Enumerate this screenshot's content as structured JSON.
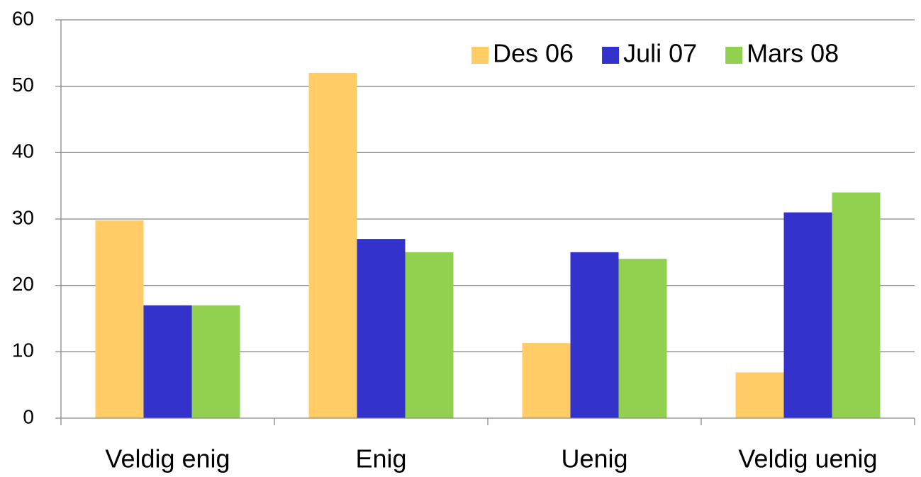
{
  "chart_data": {
    "type": "bar",
    "categories": [
      "Veldig enig",
      "Enig",
      "Uenig",
      "Veldig uenig"
    ],
    "series": [
      {
        "name": "Des 06",
        "color": "#FFCC66",
        "values": [
          29.8,
          52,
          11.3,
          6.9
        ]
      },
      {
        "name": "Juli 07",
        "color": "#3333CC",
        "values": [
          17,
          27,
          25,
          31
        ]
      },
      {
        "name": "Mars 08",
        "color": "#92D050",
        "values": [
          17,
          25,
          24,
          34
        ]
      }
    ],
    "ylim": [
      0,
      60
    ],
    "yticks": [
      0,
      10,
      20,
      30,
      40,
      50,
      60
    ],
    "grid": true,
    "legend": "top-right"
  }
}
